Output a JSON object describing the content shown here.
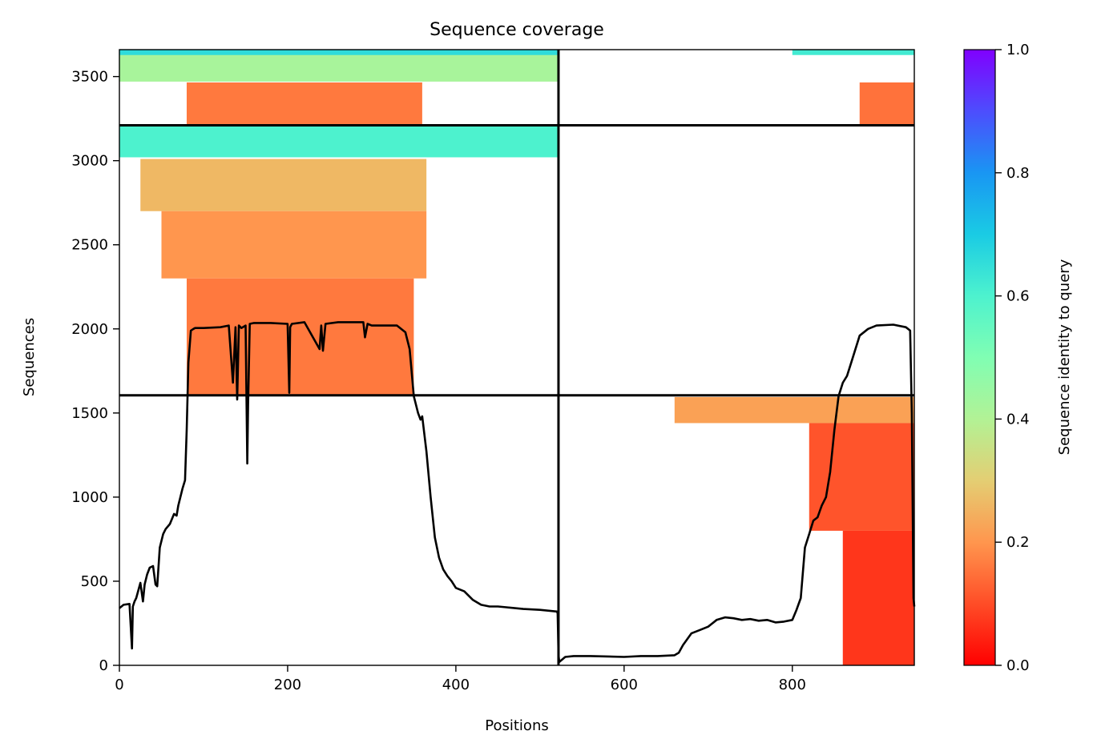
{
  "chart_data": {
    "type": "heatmap",
    "title": "Sequence coverage",
    "xlabel": "Positions",
    "ylabel": "Sequences",
    "xlim": [
      0,
      945
    ],
    "ylim": [
      0,
      3660
    ],
    "xticks": [
      0,
      200,
      400,
      600,
      800
    ],
    "yticks": [
      0,
      500,
      1000,
      1500,
      2000,
      2500,
      3000,
      3500
    ],
    "grid": false,
    "colorbar": {
      "label": "Sequence identity to query",
      "range": [
        0,
        1
      ],
      "ticks": [
        "0.0",
        "0.2",
        "0.4",
        "0.6",
        "0.8",
        "1.0"
      ],
      "colormap": "rainbow_r"
    },
    "segment_boundaries": {
      "x": [
        522
      ],
      "y": [
        1605,
        3210
      ]
    },
    "coverage_blocks": [
      {
        "x": [
          0,
          522
        ],
        "y": [
          3470,
          3655
        ],
        "identity": 0.42
      },
      {
        "x": [
          0,
          522
        ],
        "y": [
          3628,
          3660
        ],
        "identity": 0.66
      },
      {
        "x": [
          80,
          360
        ],
        "y": [
          3215,
          3465
        ],
        "identity": 0.16
      },
      {
        "x": [
          0,
          522
        ],
        "y": [
          3020,
          3205
        ],
        "identity": 0.6
      },
      {
        "x": [
          25,
          365
        ],
        "y": [
          2700,
          3010
        ],
        "identity": 0.26
      },
      {
        "x": [
          50,
          365
        ],
        "y": [
          2300,
          2700
        ],
        "identity": 0.2
      },
      {
        "x": [
          80,
          350
        ],
        "y": [
          1610,
          2300
        ],
        "identity": 0.16
      },
      {
        "x": [
          800,
          945
        ],
        "y": [
          3628,
          3660
        ],
        "identity": 0.62
      },
      {
        "x": [
          880,
          945
        ],
        "y": [
          3215,
          3465
        ],
        "identity": 0.15
      },
      {
        "x": [
          660,
          945
        ],
        "y": [
          1440,
          1595
        ],
        "identity": 0.22
      },
      {
        "x": [
          820,
          945
        ],
        "y": [
          800,
          1440
        ],
        "identity": 0.11
      },
      {
        "x": [
          860,
          945
        ],
        "y": [
          0,
          800
        ],
        "identity": 0.07
      }
    ],
    "coverage_line": {
      "x": [
        0,
        5,
        12,
        15,
        16,
        18,
        20,
        25,
        28,
        30,
        33,
        36,
        40,
        43,
        45,
        48,
        52,
        55,
        60,
        65,
        68,
        70,
        75,
        78,
        80,
        82,
        85,
        88,
        90,
        100,
        120,
        130,
        135,
        138,
        140,
        142,
        145,
        150,
        152,
        153,
        155,
        160,
        180,
        200,
        202,
        203,
        205,
        220,
        238,
        240,
        242,
        245,
        260,
        290,
        292,
        295,
        300,
        330,
        340,
        345,
        350,
        355,
        358,
        360,
        365,
        370,
        375,
        380,
        385,
        390,
        395,
        400,
        410,
        420,
        430,
        440,
        450,
        460,
        480,
        500,
        520,
        521,
        522,
        523,
        530,
        540,
        560,
        600,
        620,
        640,
        660,
        665,
        670,
        680,
        690,
        700,
        710,
        720,
        730,
        740,
        750,
        760,
        770,
        780,
        790,
        800,
        805,
        810,
        815,
        820,
        825,
        830,
        835,
        840,
        845,
        850,
        855,
        860,
        865,
        870,
        880,
        890,
        900,
        920,
        935,
        940,
        942,
        944,
        945
      ],
      "y": [
        340,
        360,
        365,
        100,
        350,
        380,
        400,
        490,
        380,
        480,
        540,
        580,
        590,
        480,
        470,
        700,
        780,
        810,
        840,
        900,
        890,
        950,
        1050,
        1100,
        1400,
        1800,
        1990,
        2000,
        2005,
        2005,
        2010,
        2020,
        1680,
        2010,
        1580,
        2020,
        2005,
        2020,
        1200,
        1550,
        2030,
        2035,
        2035,
        2030,
        1620,
        2010,
        2030,
        2040,
        1880,
        2020,
        1870,
        2030,
        2040,
        2040,
        1950,
        2030,
        2020,
        2020,
        1980,
        1880,
        1600,
        1500,
        1460,
        1480,
        1270,
        1000,
        760,
        640,
        570,
        530,
        500,
        460,
        440,
        390,
        360,
        350,
        350,
        345,
        335,
        330,
        320,
        310,
        60,
        20,
        50,
        55,
        55,
        50,
        55,
        55,
        60,
        75,
        120,
        190,
        210,
        230,
        270,
        285,
        280,
        270,
        275,
        265,
        270,
        255,
        260,
        270,
        330,
        400,
        700,
        780,
        860,
        880,
        950,
        1000,
        1150,
        1400,
        1600,
        1680,
        1720,
        1800,
        1960,
        2000,
        2020,
        2025,
        2010,
        1990,
        1500,
        400,
        350
      ]
    }
  }
}
